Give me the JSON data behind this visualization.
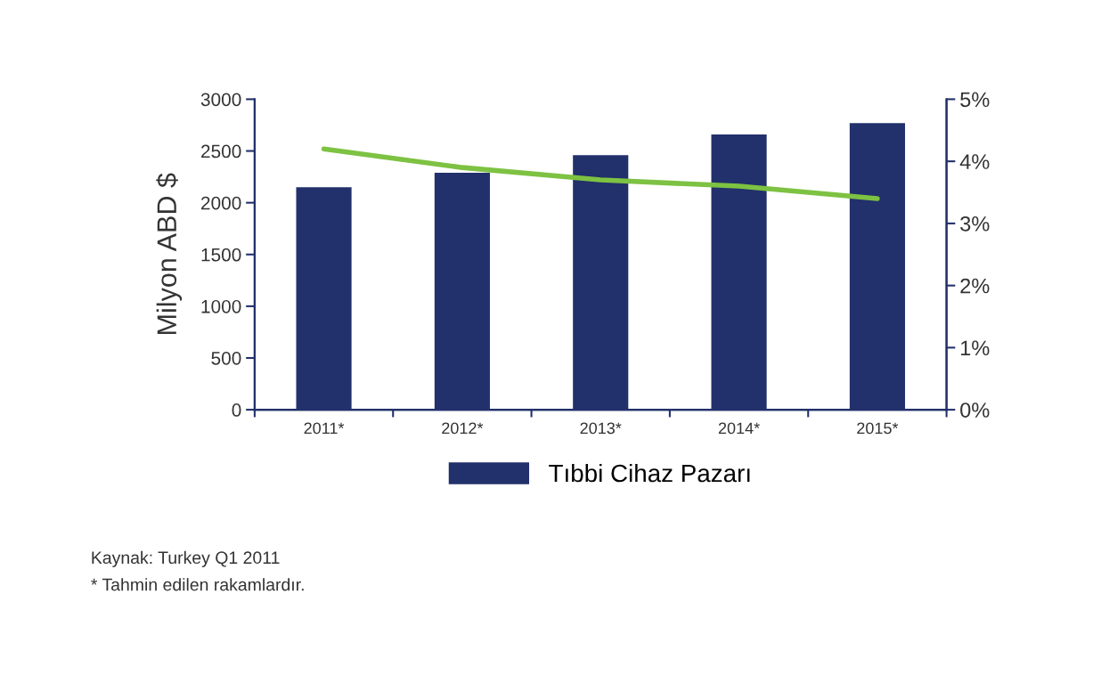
{
  "chart_data": {
    "type": "bar",
    "ylabel": "Milyon ABD $",
    "categories": [
      "2011*",
      "2012*",
      "2013*",
      "2014*",
      "2015*"
    ],
    "series": [
      {
        "name": "Tıbbi Cihaz Pazarı",
        "color": "#22306b",
        "values": [
          2150,
          2290,
          2460,
          2660,
          2770
        ]
      },
      {
        "type": "line",
        "axis": "y2",
        "color": "#7dc242",
        "values": [
          4.2,
          3.9,
          3.7,
          3.6,
          3.4
        ]
      }
    ],
    "ylim": [
      0,
      3000
    ],
    "yticks": [
      0,
      500,
      1000,
      1500,
      2000,
      2500,
      3000
    ],
    "y2lim": [
      0,
      5
    ],
    "y2ticks": [
      {
        "value": 0,
        "label": "0%"
      },
      {
        "value": 1,
        "label": "1%"
      },
      {
        "value": 2,
        "label": "2%"
      },
      {
        "value": 3,
        "label": "3%"
      },
      {
        "value": 4,
        "label": "4%"
      },
      {
        "value": 5,
        "label": "5%"
      }
    ],
    "grid": false,
    "legend": "bottom",
    "marker": "none",
    "line_style": "solid",
    "annotations": [
      "Kaynak: Turkey Q1 2011",
      "* Tahmin edilen rakamlardır."
    ]
  }
}
